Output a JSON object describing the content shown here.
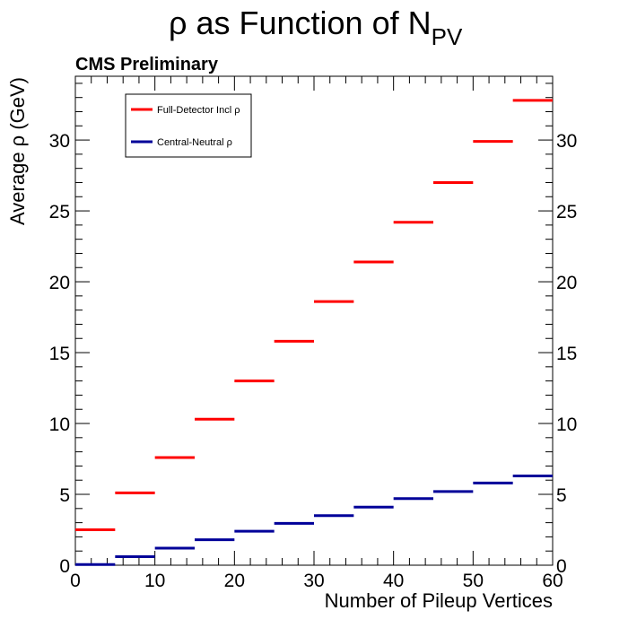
{
  "chart_data": {
    "type": "line",
    "title": "ρ as Function of N",
    "title_subscript": "PV",
    "subtitle": "CMS Preliminary",
    "xlabel": "Number of Pileup Vertices",
    "ylabel": "Average ρ (GeV)",
    "xlim": [
      0,
      60
    ],
    "ylim": [
      0,
      34.5
    ],
    "x_ticks": [
      0,
      10,
      20,
      30,
      40,
      50,
      60
    ],
    "y_ticks": [
      0,
      5,
      10,
      15,
      20,
      25,
      30
    ],
    "grid": false,
    "legend_position": "top-left",
    "bins": [
      [
        0,
        5
      ],
      [
        5,
        10
      ],
      [
        10,
        15
      ],
      [
        15,
        20
      ],
      [
        20,
        25
      ],
      [
        25,
        30
      ],
      [
        30,
        35
      ],
      [
        35,
        40
      ],
      [
        40,
        45
      ],
      [
        45,
        50
      ],
      [
        50,
        55
      ],
      [
        55,
        60
      ]
    ],
    "series": [
      {
        "name": "Full-Detector Incl ρ",
        "color": "#ff0000",
        "values": [
          2.5,
          5.1,
          7.6,
          10.3,
          13.0,
          15.8,
          18.6,
          21.4,
          24.2,
          27.0,
          29.9,
          32.8
        ]
      },
      {
        "name": "Central-Neutral ρ",
        "color": "#000099",
        "values": [
          0.05,
          0.6,
          1.2,
          1.8,
          2.4,
          2.95,
          3.5,
          4.1,
          4.7,
          5.2,
          5.8,
          6.3
        ]
      }
    ]
  }
}
